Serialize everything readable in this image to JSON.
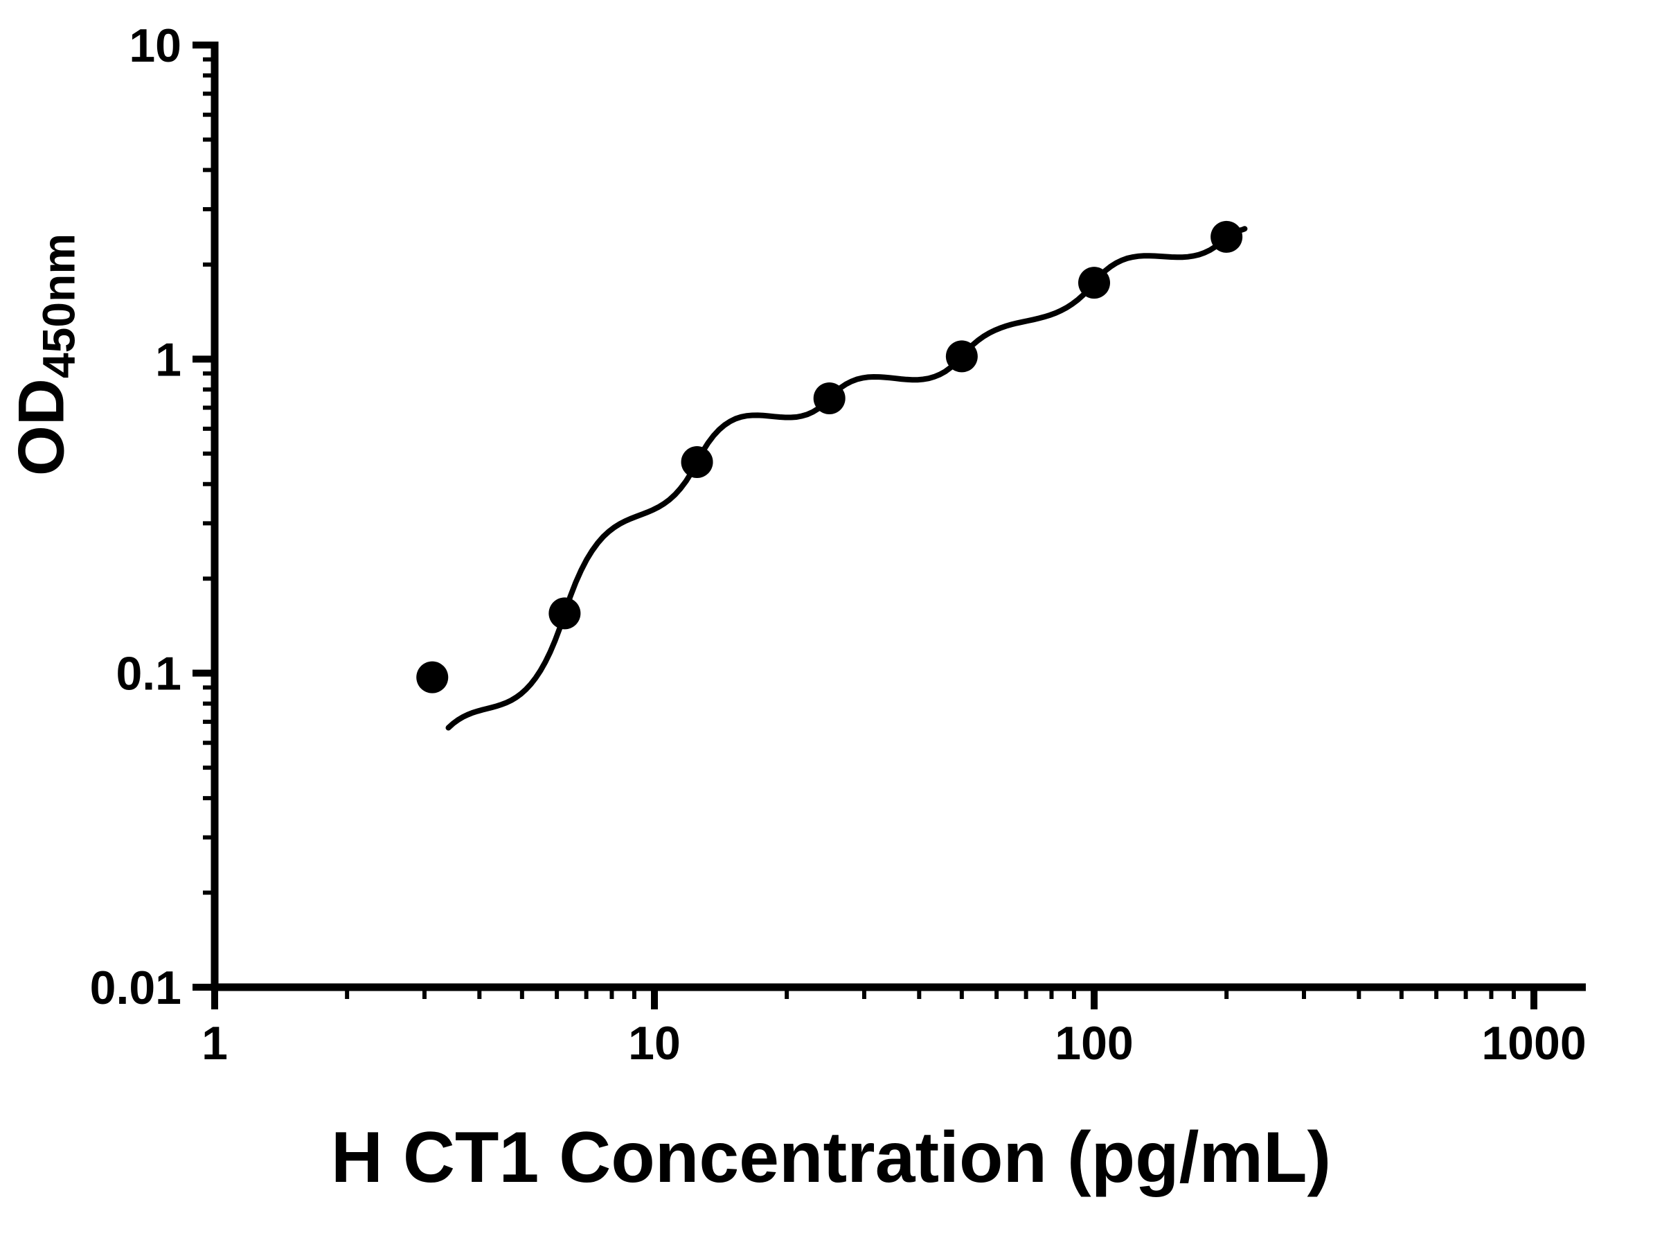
{
  "chart_data": {
    "type": "scatter",
    "title": "",
    "xlabel": "H CT1 Concentration (pg/mL)",
    "ylabel_main": "OD",
    "ylabel_sub": "450nm",
    "x_scale": "log",
    "y_scale": "log",
    "xlim": [
      1,
      1000
    ],
    "ylim": [
      0.01,
      10
    ],
    "x_tick_values": [
      1,
      10,
      100,
      1000
    ],
    "x_tick_labels": [
      "1",
      "10",
      "100",
      "1000"
    ],
    "y_tick_values": [
      0.01,
      0.1,
      1,
      10
    ],
    "y_tick_labels": [
      "0.01",
      "0.1",
      "1",
      "10"
    ],
    "grid": false,
    "legend": "none",
    "marker_color": "#000000",
    "curve_color": "#000000",
    "background_color": "#ffffff",
    "points": [
      {
        "x": 3.125,
        "y": 0.097
      },
      {
        "x": 6.25,
        "y": 0.155
      },
      {
        "x": 12.5,
        "y": 0.47
      },
      {
        "x": 25,
        "y": 0.75
      },
      {
        "x": 50,
        "y": 1.02
      },
      {
        "x": 100,
        "y": 1.75
      },
      {
        "x": 200,
        "y": 2.45
      }
    ],
    "fit_curve_anchors": [
      {
        "x": 3.4,
        "y": 0.067
      },
      {
        "x": 6.25,
        "y": 0.155
      },
      {
        "x": 12.5,
        "y": 0.47
      },
      {
        "x": 25,
        "y": 0.75
      },
      {
        "x": 50,
        "y": 1.02
      },
      {
        "x": 100,
        "y": 1.75
      },
      {
        "x": 200,
        "y": 2.45
      },
      {
        "x": 220,
        "y": 2.6
      }
    ]
  }
}
